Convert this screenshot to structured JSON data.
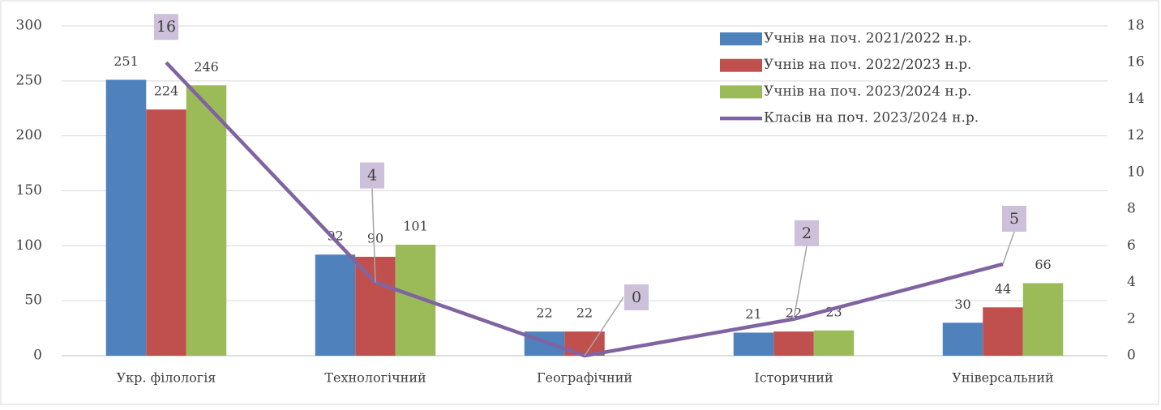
{
  "chart_data": {
    "type": "bar",
    "categories": [
      "Укр. філологія",
      "Технологічний",
      "Географічний",
      "Історичний",
      "Універсальний"
    ],
    "series": [
      {
        "name": "Учнів на поч. 2021/2022 н.р.",
        "type": "bar",
        "color": "#4f81bd",
        "values": [
          251,
          92,
          22,
          21,
          30
        ]
      },
      {
        "name": "Учнів на поч. 2022/2023 н.р.",
        "type": "bar",
        "color": "#c0504d",
        "values": [
          224,
          90,
          22,
          22,
          44
        ]
      },
      {
        "name": "Учнів на поч. 2023/2024 н.р.",
        "type": "bar",
        "color": "#9bbb59",
        "values": [
          246,
          101,
          null,
          23,
          66
        ]
      },
      {
        "name": "Класів на поч. 2023/2024 н.р.",
        "type": "line",
        "axis": "y2",
        "color": "#8064a2",
        "values": [
          16,
          4,
          0,
          2,
          5
        ]
      }
    ],
    "ylim": [
      0,
      300
    ],
    "yticks": [
      0,
      50,
      100,
      150,
      200,
      250,
      300
    ],
    "y2lim": [
      0,
      18
    ],
    "y2ticks": [
      0,
      2,
      4,
      6,
      8,
      10,
      12,
      14,
      16,
      18
    ],
    "grid": true,
    "legend": "top-right"
  }
}
